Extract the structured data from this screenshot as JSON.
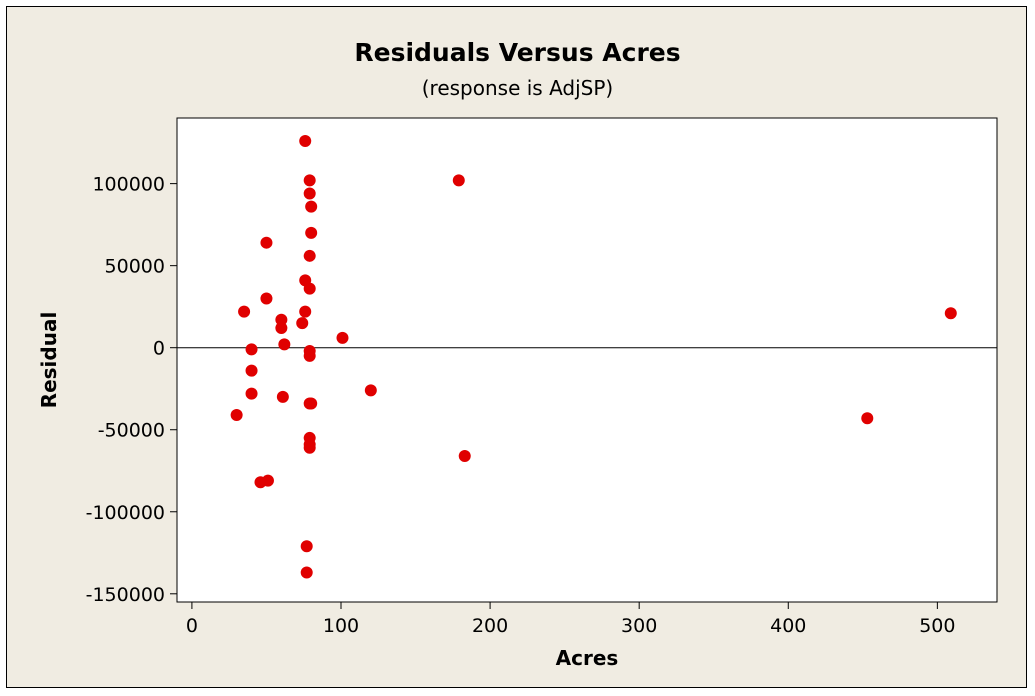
{
  "chart_data": {
    "type": "scatter",
    "title": "Residuals Versus Acres",
    "subtitle": "(response is AdjSP)",
    "xlabel": "Acres",
    "ylabel": "Residual",
    "xlim": [
      -10,
      540
    ],
    "ylim": [
      -155000,
      140000
    ],
    "xticks": [
      0,
      100,
      200,
      300,
      400,
      500
    ],
    "yticks": [
      -150000,
      -100000,
      -50000,
      0,
      50000,
      100000
    ],
    "xtick_labels": [
      "0",
      "100",
      "200",
      "300",
      "400",
      "500"
    ],
    "ytick_labels": [
      "-150000",
      "-100000",
      "-50000",
      "0",
      "50000",
      "100000"
    ],
    "reference_line_y": 0,
    "marker_color": "#e00000",
    "background_color": "#f0ece2",
    "grid": false,
    "points": [
      {
        "x": 30,
        "y": -41000
      },
      {
        "x": 35,
        "y": 22000
      },
      {
        "x": 40,
        "y": -1000
      },
      {
        "x": 40,
        "y": -14000
      },
      {
        "x": 40,
        "y": -28000
      },
      {
        "x": 46,
        "y": -82000
      },
      {
        "x": 50,
        "y": 64000
      },
      {
        "x": 50,
        "y": 30000
      },
      {
        "x": 51,
        "y": -81000
      },
      {
        "x": 60,
        "y": 17000
      },
      {
        "x": 60,
        "y": 12000
      },
      {
        "x": 61,
        "y": -30000
      },
      {
        "x": 62,
        "y": 2000
      },
      {
        "x": 74,
        "y": 15000
      },
      {
        "x": 76,
        "y": 126000
      },
      {
        "x": 76,
        "y": 41000
      },
      {
        "x": 76,
        "y": 22000
      },
      {
        "x": 77,
        "y": -121000
      },
      {
        "x": 77,
        "y": -137000
      },
      {
        "x": 79,
        "y": 102000
      },
      {
        "x": 79,
        "y": 94000
      },
      {
        "x": 80,
        "y": 86000
      },
      {
        "x": 80,
        "y": 70000
      },
      {
        "x": 79,
        "y": 56000
      },
      {
        "x": 79,
        "y": 36000
      },
      {
        "x": 79,
        "y": -2000
      },
      {
        "x": 79,
        "y": -5000
      },
      {
        "x": 79,
        "y": -34000
      },
      {
        "x": 79,
        "y": -55000
      },
      {
        "x": 79,
        "y": -59000
      },
      {
        "x": 79,
        "y": -61000
      },
      {
        "x": 80,
        "y": -34000
      },
      {
        "x": 101,
        "y": 6000
      },
      {
        "x": 120,
        "y": -26000
      },
      {
        "x": 179,
        "y": 102000
      },
      {
        "x": 183,
        "y": -66000
      },
      {
        "x": 453,
        "y": -43000
      },
      {
        "x": 509,
        "y": 21000
      }
    ]
  }
}
